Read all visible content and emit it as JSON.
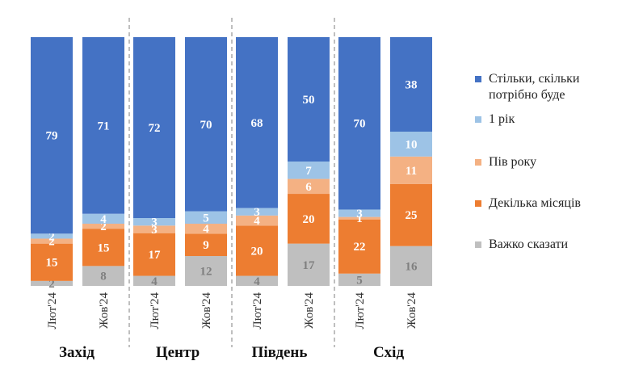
{
  "chart_data": {
    "type": "bar",
    "stacked": true,
    "categories": [
      "Лют'24",
      "Жов'24",
      "Лют'24",
      "Жов'24",
      "Лют'24",
      "Жов'24",
      "Лют'24",
      "Жов'24"
    ],
    "groups": [
      {
        "label": "Захід",
        "indices": [
          0,
          1
        ]
      },
      {
        "label": "Центр",
        "indices": [
          2,
          3
        ]
      },
      {
        "label": "Південь",
        "indices": [
          4,
          5
        ]
      },
      {
        "label": "Схід",
        "indices": [
          6,
          7
        ]
      }
    ],
    "series": [
      {
        "name": "Важко сказати",
        "color": "#bfbfbf",
        "label_color": "#7f7f7f",
        "values": [
          2,
          8,
          4,
          12,
          4,
          17,
          5,
          16
        ]
      },
      {
        "name": "Декілька місяців",
        "color": "#ed7d31",
        "label_color": "#ffffff",
        "values": [
          15,
          15,
          17,
          9,
          20,
          20,
          22,
          25
        ]
      },
      {
        "name": "Пів року",
        "color": "#f4b183",
        "label_color": "#ffffff",
        "values": [
          2,
          2,
          3,
          4,
          4,
          6,
          1,
          11
        ]
      },
      {
        "name": "1 рік",
        "color": "#9dc3e6",
        "label_color": "#ffffff",
        "values": [
          2,
          4,
          3,
          5,
          3,
          7,
          3,
          10
        ]
      },
      {
        "name": "Стільки, скільки потрібно буде",
        "color": "#4472c4",
        "label_color": "#ffffff",
        "values": [
          79,
          71,
          72,
          70,
          68,
          50,
          70,
          38
        ]
      }
    ],
    "legend": {
      "position": "right",
      "order": [
        4,
        3,
        2,
        1,
        0
      ],
      "wrapped_labels": [
        [
          "Стільки, скільки",
          "потрібно буде"
        ],
        [
          "1 рік"
        ],
        [
          "Пів року"
        ],
        [
          "Декілька місяців"
        ],
        [
          "Важко сказати"
        ]
      ]
    },
    "ylim": [
      0,
      100
    ],
    "grid": false
  }
}
